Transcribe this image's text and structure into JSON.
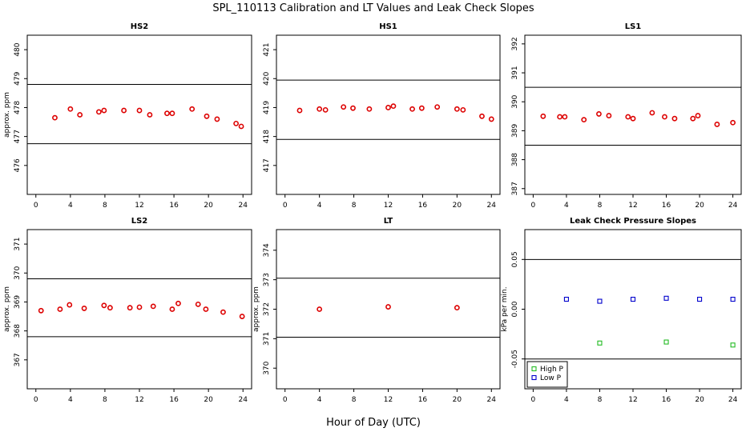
{
  "figure": {
    "title": "SPL_110113  Calibration and LT Values and Leak Check Slopes",
    "xlabel": "Hour of Day (UTC)"
  },
  "colors": {
    "calibration": "#dd0000",
    "high_p": "#22bb22",
    "low_p": "#0000cc",
    "line": "#000000"
  },
  "chart_data": [
    {
      "type": "scatter",
      "title": "HS2",
      "ylabel": "approx. ppm",
      "xlim": [
        -1,
        25
      ],
      "ylim": [
        475,
        480.5
      ],
      "xticks": [
        0,
        4,
        8,
        12,
        16,
        20,
        24
      ],
      "yticks": [
        476,
        477,
        478,
        479,
        480
      ],
      "hlines": [
        476.75,
        478.8
      ],
      "series": [
        {
          "x": [
            2.2,
            4.0,
            5.1,
            7.3,
            7.9,
            10.2,
            12.0,
            13.2,
            15.2,
            15.8,
            18.1,
            19.8,
            21.0,
            23.2,
            23.8
          ],
          "y": [
            477.65,
            477.95,
            477.75,
            477.85,
            477.9,
            477.9,
            477.9,
            477.75,
            477.8,
            477.8,
            477.95,
            477.7,
            477.6,
            477.45,
            477.35
          ]
        }
      ]
    },
    {
      "type": "scatter",
      "title": "HS1",
      "ylabel": "",
      "xlim": [
        -1,
        25
      ],
      "ylim": [
        416,
        421.5
      ],
      "xticks": [
        0,
        4,
        8,
        12,
        16,
        20,
        24
      ],
      "yticks": [
        417,
        418,
        419,
        420,
        421
      ],
      "hlines": [
        417.9,
        419.95
      ],
      "series": [
        {
          "x": [
            1.7,
            4.0,
            4.7,
            6.8,
            7.9,
            9.8,
            12.0,
            12.6,
            14.8,
            15.9,
            17.7,
            20.0,
            20.7,
            22.9,
            24.0
          ],
          "y": [
            418.9,
            418.95,
            418.92,
            419.02,
            418.98,
            418.95,
            419.0,
            419.05,
            418.95,
            418.98,
            419.02,
            418.95,
            418.92,
            418.7,
            418.6
          ]
        }
      ]
    },
    {
      "type": "scatter",
      "title": "LS1",
      "ylabel": "",
      "xlim": [
        -1,
        25
      ],
      "ylim": [
        386.8,
        392.3
      ],
      "xticks": [
        0,
        4,
        8,
        12,
        16,
        20,
        24
      ],
      "yticks": [
        387,
        388,
        389,
        390,
        391,
        392
      ],
      "hlines": [
        388.5,
        390.5
      ],
      "series": [
        {
          "x": [
            1.2,
            3.2,
            3.8,
            6.1,
            7.9,
            9.1,
            11.4,
            12.0,
            14.3,
            15.8,
            17.0,
            19.2,
            19.8,
            22.1,
            24.0
          ],
          "y": [
            389.5,
            389.48,
            389.48,
            389.38,
            389.58,
            389.52,
            389.48,
            389.42,
            389.62,
            389.48,
            389.42,
            389.42,
            389.52,
            389.22,
            389.28
          ]
        }
      ]
    },
    {
      "type": "scatter",
      "title": "LS2",
      "ylabel": "approx. ppm",
      "xlim": [
        -1,
        25
      ],
      "ylim": [
        366,
        371.5
      ],
      "xticks": [
        0,
        4,
        8,
        12,
        16,
        20,
        24
      ],
      "yticks": [
        367,
        368,
        369,
        370,
        371
      ],
      "hlines": [
        367.8,
        369.8
      ],
      "series": [
        {
          "x": [
            0.6,
            2.8,
            3.9,
            5.6,
            7.9,
            8.6,
            10.9,
            12.0,
            13.6,
            15.8,
            16.5,
            18.8,
            19.7,
            21.7,
            23.9
          ],
          "y": [
            368.7,
            368.75,
            368.9,
            368.78,
            368.88,
            368.8,
            368.8,
            368.82,
            368.85,
            368.75,
            368.95,
            368.92,
            368.75,
            368.65,
            368.5
          ]
        }
      ]
    },
    {
      "type": "scatter",
      "title": "LT",
      "ylabel": "approx. ppm",
      "xlim": [
        -1,
        25
      ],
      "ylim": [
        369.3,
        374.7
      ],
      "xticks": [
        0,
        4,
        8,
        12,
        16,
        20,
        24
      ],
      "yticks": [
        370,
        371,
        372,
        373,
        374
      ],
      "hlines": [
        371.05,
        373.05
      ],
      "series": [
        {
          "x": [
            4.0,
            12.0,
            20.0
          ],
          "y": [
            372.0,
            372.08,
            372.05
          ]
        }
      ]
    },
    {
      "type": "scatter",
      "title": "Leak Check Pressure Slopes",
      "ylabel": "kPa per min.",
      "xlim": [
        -1,
        25
      ],
      "ylim": [
        -0.08,
        0.08
      ],
      "xticks": [
        0,
        4,
        8,
        12,
        16,
        20,
        24
      ],
      "yticks": [
        -0.05,
        0.0,
        0.05
      ],
      "ytick_labels": [
        "-0.05",
        "0.00",
        "0.05"
      ],
      "hlines": [
        -0.05,
        0.05
      ],
      "series": [
        {
          "name": "High P",
          "x": [
            8,
            16,
            24
          ],
          "y": [
            -0.034,
            -0.033,
            -0.036
          ]
        },
        {
          "name": "Low P",
          "x": [
            4,
            8,
            12,
            16,
            20,
            24
          ],
          "y": [
            0.01,
            0.008,
            0.01,
            0.011,
            0.01,
            0.01
          ]
        }
      ],
      "legend": "bottom-left"
    }
  ]
}
